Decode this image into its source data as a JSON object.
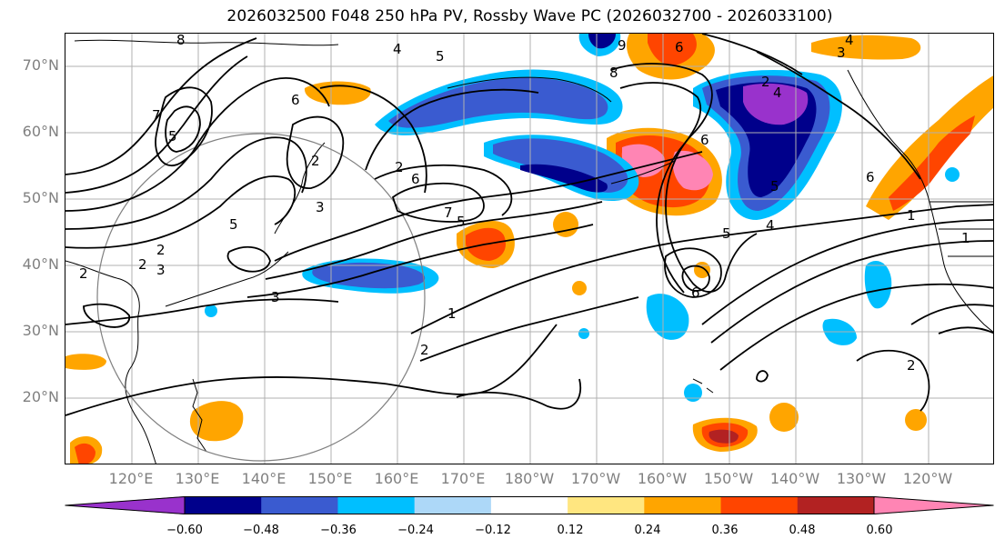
{
  "title": "2026032500 F048 250 hPa PV, Rossby Wave PC (2026032700 - 2026033100)",
  "lat_labels": [
    "70°N",
    "60°N",
    "50°N",
    "40°N",
    "30°N",
    "20°N"
  ],
  "lon_labels": [
    "120°E",
    "130°E",
    "140°E",
    "150°E",
    "160°E",
    "170°E",
    "180°W",
    "170°W",
    "160°W",
    "150°W",
    "140°W",
    "130°W",
    "120°W"
  ],
  "colorbar": {
    "labels": [
      "−0.60",
      "−0.48",
      "−0.36",
      "−0.24",
      "−0.12",
      "0.12",
      "0.24",
      "0.36",
      "0.48",
      "0.60"
    ],
    "colors": [
      "#9932cc",
      "#00008b",
      "#3a5bd0",
      "#00bfff",
      "#add8f8",
      "#ffffff",
      "#ffe680",
      "#ffa500",
      "#ff4500",
      "#b22222",
      "#ff85b4"
    ]
  },
  "contour_labels": [
    "8",
    "4",
    "5",
    "7",
    "6",
    "2",
    "5",
    "3",
    "2",
    "2",
    "2",
    "3",
    "3",
    "6",
    "2",
    "7",
    "5",
    "1",
    "2",
    "9",
    "8",
    "6",
    "3",
    "2",
    "4",
    "4",
    "6",
    "5",
    "5",
    "4",
    "6",
    "1",
    "1",
    "6",
    "2",
    "5"
  ],
  "palette": {
    "purple": "#9932cc",
    "navy": "#00008b",
    "blue": "#3a5bd0",
    "cyan": "#00bfff",
    "lightblue": "#add8f8",
    "yellow": "#ffe680",
    "orange": "#ffa500",
    "redorange": "#ff4500",
    "darkred": "#b22222",
    "pink": "#ff85b4"
  }
}
